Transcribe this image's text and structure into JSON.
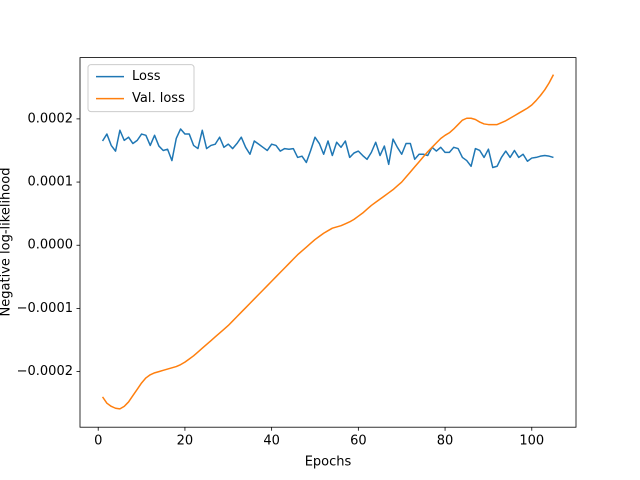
{
  "chart_data": {
    "type": "line",
    "xlabel": "Epochs",
    "ylabel": "Negative log-likelihood",
    "x": [
      1,
      2,
      3,
      4,
      5,
      6,
      7,
      8,
      9,
      10,
      11,
      12,
      13,
      14,
      15,
      16,
      17,
      18,
      19,
      20,
      21,
      22,
      23,
      24,
      25,
      26,
      27,
      28,
      29,
      30,
      31,
      32,
      33,
      34,
      35,
      36,
      37,
      38,
      39,
      40,
      41,
      42,
      43,
      44,
      45,
      46,
      47,
      48,
      49,
      50,
      51,
      52,
      53,
      54,
      55,
      56,
      57,
      58,
      59,
      60,
      61,
      62,
      63,
      64,
      65,
      66,
      67,
      68,
      69,
      70,
      71,
      72,
      73,
      74,
      75,
      76,
      77,
      78,
      79,
      80,
      81,
      82,
      83,
      84,
      85,
      86,
      87,
      88,
      89,
      90,
      91,
      92,
      93,
      94,
      95,
      96,
      97,
      98,
      99,
      100,
      101,
      102,
      103,
      104,
      105
    ],
    "series": [
      {
        "name": "Loss",
        "color": "#1f77b4",
        "values": [
          0.000165,
          0.000176,
          0.000158,
          0.000149,
          0.000182,
          0.000166,
          0.000171,
          0.000161,
          0.000166,
          0.000176,
          0.000174,
          0.000158,
          0.000174,
          0.000157,
          0.00015,
          0.000152,
          0.000134,
          0.000169,
          0.000184,
          0.000176,
          0.000176,
          0.000158,
          0.000153,
          0.000182,
          0.000153,
          0.000158,
          0.00016,
          0.000171,
          0.000155,
          0.00016,
          0.000153,
          0.000161,
          0.000171,
          0.000155,
          0.000144,
          0.000165,
          0.00016,
          0.000155,
          0.00015,
          0.00016,
          0.000158,
          0.000149,
          0.000153,
          0.000152,
          0.000153,
          0.000139,
          0.000141,
          0.000131,
          0.00015,
          0.000171,
          0.000161,
          0.000144,
          0.000165,
          0.000142,
          0.000163,
          0.000155,
          0.000165,
          0.000139,
          0.000146,
          0.000149,
          0.000142,
          0.000136,
          0.000147,
          0.000163,
          0.000142,
          0.000157,
          0.000128,
          0.000168,
          0.000155,
          0.000144,
          0.000161,
          0.000161,
          0.000136,
          0.000144,
          0.000144,
          0.000142,
          0.000155,
          0.000149,
          0.000155,
          0.000147,
          0.000147,
          0.000155,
          0.000153,
          0.000139,
          0.000134,
          0.000125,
          0.000153,
          0.00015,
          0.000139,
          0.000152,
          0.000123,
          0.000125,
          0.000139,
          0.000149,
          0.000139,
          0.00015,
          0.000139,
          0.000144,
          0.000133,
          0.000138,
          0.000139,
          0.000141,
          0.000142,
          0.000141,
          0.000139
        ]
      },
      {
        "name": "Val. loss",
        "color": "#ff7f0e",
        "values": [
          -0.00024,
          -0.00025,
          -0.000255,
          -0.000258,
          -0.000259,
          -0.000255,
          -0.000248,
          -0.000238,
          -0.000228,
          -0.000218,
          -0.00021,
          -0.000205,
          -0.000202,
          -0.0002,
          -0.000198,
          -0.000196,
          -0.000194,
          -0.000192,
          -0.000189,
          -0.000185,
          -0.00018,
          -0.000175,
          -0.000169,
          -0.000163,
          -0.000157,
          -0.000151,
          -0.000145,
          -0.000139,
          -0.000133,
          -0.000127,
          -0.00012,
          -0.000113,
          -0.000106,
          -9.9e-05,
          -9.2e-05,
          -8.5e-05,
          -7.8e-05,
          -7.1e-05,
          -6.4e-05,
          -5.7e-05,
          -5e-05,
          -4.3e-05,
          -3.6e-05,
          -2.9e-05,
          -2.2e-05,
          -1.5e-05,
          -9e-06,
          -3e-06,
          3e-06,
          9e-06,
          1.4e-05,
          1.9e-05,
          2.3e-05,
          2.7e-05,
          2.9e-05,
          3.1e-05,
          3.4e-05,
          3.7e-05,
          4.1e-05,
          4.6e-05,
          5.1e-05,
          5.7e-05,
          6.3e-05,
          6.8e-05,
          7.3e-05,
          7.8e-05,
          8.3e-05,
          8.8e-05,
          9.4e-05,
          0.0001,
          0.000108,
          0.000116,
          0.000124,
          0.000132,
          0.00014,
          0.000148,
          0.000155,
          0.000162,
          0.000169,
          0.000174,
          0.000178,
          0.000184,
          0.000191,
          0.000198,
          0.000201,
          0.000201,
          0.000199,
          0.000195,
          0.000192,
          0.000191,
          0.000191,
          0.000191,
          0.000194,
          0.000197,
          0.000201,
          0.000205,
          0.000209,
          0.000213,
          0.000217,
          0.000222,
          0.000229,
          0.000237,
          0.000246,
          0.000257,
          0.00027
        ]
      }
    ],
    "xlim": [
      -4.2,
      110.2
    ],
    "xticks": [
      0,
      20,
      40,
      60,
      80,
      100
    ],
    "ylim": [
      -0.000288,
      0.000297
    ],
    "yticks": [
      {
        "value": -0.0002,
        "label": "−0.0002"
      },
      {
        "value": -0.0001,
        "label": "−0.0001"
      },
      {
        "value": 0,
        "label": "0.0000"
      },
      {
        "value": 0.0001,
        "label": "0.0001"
      },
      {
        "value": 0.0002,
        "label": "0.0002"
      }
    ],
    "legend": "upper left",
    "grid": false
  }
}
